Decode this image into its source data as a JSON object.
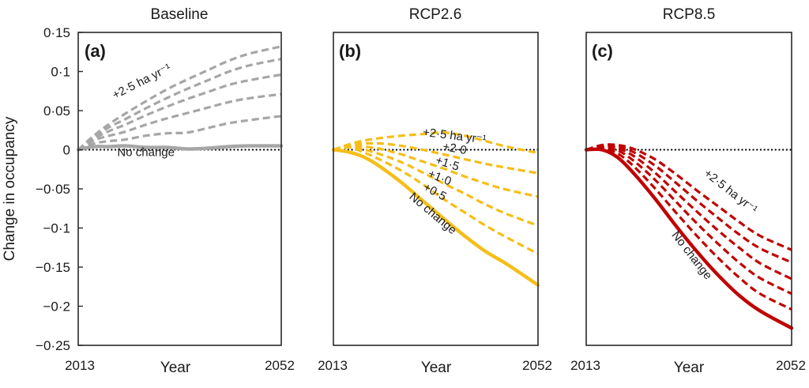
{
  "figure": {
    "ylabel": "Change in occupancy",
    "xlabel": "Year"
  },
  "chart_data": [
    {
      "type": "line",
      "panel": "(a)",
      "title": "Baseline",
      "xlabel": "Year",
      "ylabel": "Change in occupancy",
      "xlim": [
        2013,
        2052
      ],
      "ylim": [
        -0.25,
        0.15
      ],
      "x_ticks": [
        "2013",
        "2052"
      ],
      "y_ticks": [
        {
          "v": 0.15,
          "label": "0·15"
        },
        {
          "v": 0.1,
          "label": "0·1"
        },
        {
          "v": 0.05,
          "label": "0·05"
        },
        {
          "v": 0,
          "label": "0"
        },
        {
          "v": -0.05,
          "label": "−0·05"
        },
        {
          "v": -0.1,
          "label": "−0·1"
        },
        {
          "v": -0.15,
          "label": "−0·15"
        },
        {
          "v": -0.2,
          "label": "−0·2"
        },
        {
          "v": -0.25,
          "label": "−0·25"
        }
      ],
      "color": "#a6a6a6",
      "reference_line": {
        "y": 0,
        "style": "dotted",
        "color": "#000000"
      },
      "x": [
        2013,
        2016,
        2019,
        2022,
        2026,
        2030,
        2034,
        2038,
        2042,
        2046,
        2052
      ],
      "series": [
        {
          "name": "No change",
          "style": "solid",
          "values": [
            0,
            0.004,
            0.004,
            0.005,
            0.003,
            0.003,
            0.001,
            0.002,
            0.004,
            0.005,
            0.005
          ]
        },
        {
          "name": "+0.5 ha yr-1",
          "style": "dashed",
          "values": [
            0,
            0.008,
            0.011,
            0.013,
            0.018,
            0.021,
            0.022,
            0.028,
            0.034,
            0.038,
            0.043
          ]
        },
        {
          "name": "+1.0 ha yr-1",
          "style": "dashed",
          "values": [
            0,
            0.012,
            0.018,
            0.023,
            0.032,
            0.04,
            0.047,
            0.054,
            0.061,
            0.066,
            0.071
          ]
        },
        {
          "name": "+1.5 ha yr-1",
          "style": "dashed",
          "values": [
            0,
            0.014,
            0.024,
            0.032,
            0.044,
            0.055,
            0.065,
            0.074,
            0.083,
            0.089,
            0.096
          ]
        },
        {
          "name": "+2.0 ha yr-1",
          "style": "dashed",
          "values": [
            0,
            0.016,
            0.029,
            0.039,
            0.053,
            0.066,
            0.078,
            0.089,
            0.1,
            0.108,
            0.116
          ]
        },
        {
          "name": "+2.5 ha yr-1",
          "style": "dashed",
          "values": [
            0,
            0.018,
            0.033,
            0.046,
            0.062,
            0.077,
            0.09,
            0.102,
            0.114,
            0.123,
            0.132
          ]
        }
      ],
      "annotations": [
        {
          "text": "+2·5 ha yr⁻¹",
          "x": 2025.5,
          "y": 0.083,
          "angle": -27
        },
        {
          "text": "No change",
          "x": 2026,
          "y": -0.008,
          "angle": 0
        }
      ]
    },
    {
      "type": "line",
      "panel": "(b)",
      "title": "RCP2.6",
      "xlabel": "Year",
      "xlim": [
        2013,
        2052
      ],
      "ylim": [
        -0.25,
        0.15
      ],
      "x_ticks": [
        "2013",
        "2052"
      ],
      "color": "#f5be17",
      "reference_line": {
        "y": 0,
        "style": "dotted",
        "color": "#000000"
      },
      "x": [
        2013,
        2016,
        2019,
        2022,
        2026,
        2030,
        2034,
        2038,
        2042,
        2046,
        2052
      ],
      "series": [
        {
          "name": "No change",
          "style": "solid",
          "values": [
            0,
            -0.003,
            -0.01,
            -0.022,
            -0.042,
            -0.065,
            -0.088,
            -0.11,
            -0.13,
            -0.146,
            -0.173
          ]
        },
        {
          "name": "+0.5 ha yr-1",
          "style": "dashed",
          "values": [
            0,
            0.003,
            -0.004,
            -0.013,
            -0.027,
            -0.044,
            -0.063,
            -0.08,
            -0.097,
            -0.112,
            -0.133
          ]
        },
        {
          "name": "+1.0 ha yr-1",
          "style": "dashed",
          "values": [
            0,
            0.004,
            0.0,
            -0.006,
            -0.016,
            -0.029,
            -0.043,
            -0.056,
            -0.07,
            -0.082,
            -0.097
          ]
        },
        {
          "name": "+1.5 ha yr-1",
          "style": "dashed",
          "values": [
            0,
            0.005,
            0.004,
            0.001,
            -0.006,
            -0.015,
            -0.024,
            -0.034,
            -0.043,
            -0.051,
            -0.06
          ]
        },
        {
          "name": "+2.0 ha yr-1",
          "style": "dashed",
          "values": [
            0,
            0.006,
            0.008,
            0.008,
            0.005,
            0.0,
            -0.006,
            -0.012,
            -0.018,
            -0.023,
            -0.03
          ]
        },
        {
          "name": "+2.5 ha yr-1",
          "style": "dashed",
          "values": [
            0,
            0.007,
            0.012,
            0.015,
            0.018,
            0.02,
            0.022,
            0.018,
            0.011,
            0.004,
            -0.004
          ]
        }
      ],
      "annotations": [
        {
          "text": "+2·5 ha yr⁻¹",
          "x": 2036,
          "y": 0.013,
          "angle": 7
        },
        {
          "text": "+2·0",
          "x": 2036,
          "y": -0.003,
          "angle": 10
        },
        {
          "text": "+1·5",
          "x": 2034.5,
          "y": -0.022,
          "angle": 18
        },
        {
          "text": "+1·0",
          "x": 2033,
          "y": -0.04,
          "angle": 22
        },
        {
          "text": "+0·5",
          "x": 2032,
          "y": -0.058,
          "angle": 28
        },
        {
          "text": "No change",
          "x": 2031.5,
          "y": -0.085,
          "angle": 40
        }
      ]
    },
    {
      "type": "line",
      "panel": "(c)",
      "title": "RCP8.5",
      "xlabel": "Year",
      "xlim": [
        2013,
        2052
      ],
      "ylim": [
        -0.25,
        0.15
      ],
      "x_ticks": [
        "2013",
        "2052"
      ],
      "color": "#c00000",
      "reference_line": {
        "y": 0,
        "style": "dotted",
        "color": "#000000"
      },
      "x": [
        2013,
        2016,
        2019,
        2022,
        2026,
        2030,
        2034,
        2038,
        2042,
        2046,
        2052
      ],
      "series": [
        {
          "name": "No change",
          "style": "solid",
          "values": [
            0,
            0.0,
            -0.01,
            -0.03,
            -0.062,
            -0.097,
            -0.13,
            -0.16,
            -0.186,
            -0.206,
            -0.228
          ]
        },
        {
          "name": "+0.5 ha yr-1",
          "style": "dashed",
          "values": [
            0,
            0.002,
            -0.005,
            -0.021,
            -0.049,
            -0.08,
            -0.11,
            -0.138,
            -0.163,
            -0.184,
            -0.204
          ]
        },
        {
          "name": "+1.0 ha yr-1",
          "style": "dashed",
          "values": [
            0,
            0.003,
            -0.001,
            -0.014,
            -0.038,
            -0.066,
            -0.094,
            -0.12,
            -0.144,
            -0.164,
            -0.184
          ]
        },
        {
          "name": "+1.5 ha yr-1",
          "style": "dashed",
          "values": [
            0,
            0.004,
            0.002,
            -0.008,
            -0.029,
            -0.054,
            -0.079,
            -0.103,
            -0.125,
            -0.145,
            -0.165
          ]
        },
        {
          "name": "+2.0 ha yr-1",
          "style": "dashed",
          "values": [
            0,
            0.005,
            0.004,
            -0.003,
            -0.02,
            -0.042,
            -0.065,
            -0.087,
            -0.108,
            -0.126,
            -0.144
          ]
        },
        {
          "name": "+2.5 ha yr-1",
          "style": "dashed",
          "values": [
            0,
            0.006,
            0.006,
            0.001,
            -0.012,
            -0.031,
            -0.052,
            -0.072,
            -0.092,
            -0.11,
            -0.128
          ]
        }
      ],
      "annotations": [
        {
          "text": "+2·5 ha yr⁻¹",
          "x": 2040,
          "y": -0.057,
          "angle": 38
        },
        {
          "text": "No change",
          "x": 2032.5,
          "y": -0.138,
          "angle": 52
        }
      ]
    }
  ]
}
